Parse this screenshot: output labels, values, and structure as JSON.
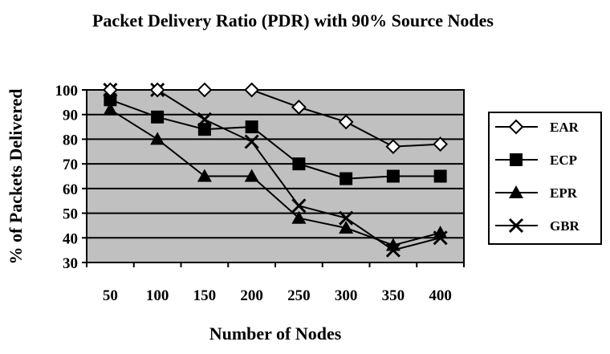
{
  "chart_data": {
    "type": "line",
    "title": "Packet Delivery Ratio (PDR) with 90% Source Nodes",
    "xlabel": "Number of Nodes",
    "ylabel": "% of Packets  Delivered",
    "categories": [
      "50",
      "100",
      "150",
      "200",
      "250",
      "300",
      "350",
      "400"
    ],
    "ylim": [
      30,
      100
    ],
    "yticks": [
      30,
      40,
      50,
      60,
      70,
      80,
      90,
      100
    ],
    "grid": true,
    "legend_position": "right",
    "plot_background": "#c0c0c0",
    "series": [
      {
        "name": "EAR",
        "marker": "diamond-open",
        "values": [
          100,
          100,
          100,
          100,
          93,
          87,
          77,
          78
        ]
      },
      {
        "name": "ECP",
        "marker": "square",
        "values": [
          96,
          89,
          84,
          85,
          70,
          64,
          65,
          65
        ]
      },
      {
        "name": "EPR",
        "marker": "triangle",
        "values": [
          92,
          80,
          65,
          65,
          48,
          44,
          37,
          42
        ]
      },
      {
        "name": "GBR",
        "marker": "x",
        "values": [
          100,
          100,
          88,
          79,
          53,
          48,
          35,
          40
        ]
      }
    ]
  }
}
